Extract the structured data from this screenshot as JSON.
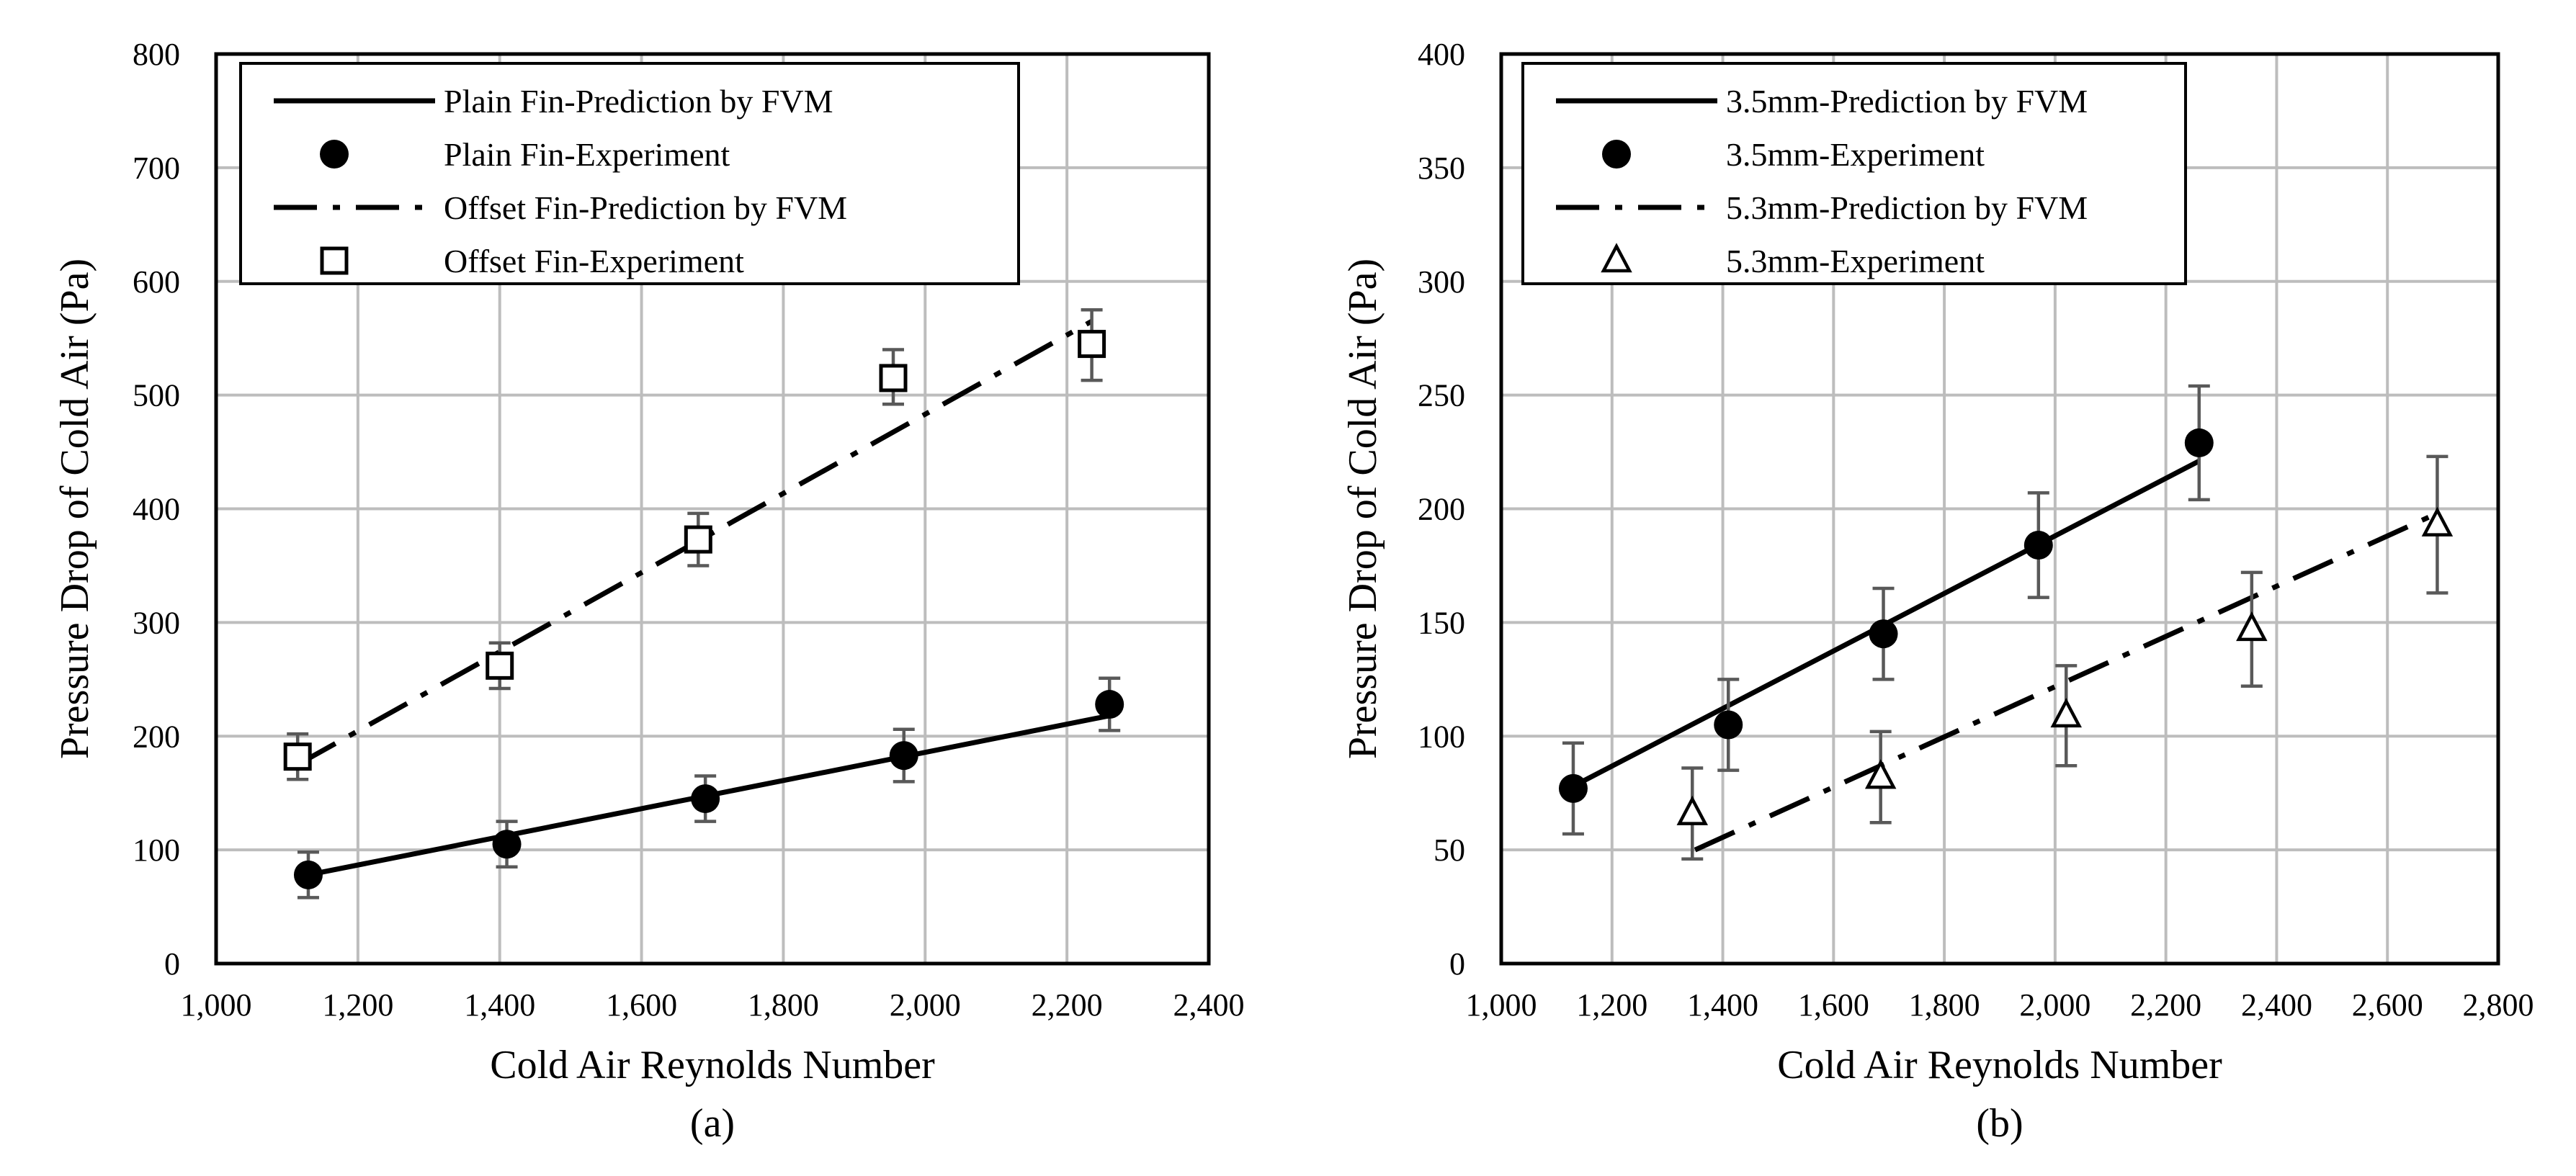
{
  "chart_data": [
    {
      "type": "line",
      "caption": "(a)",
      "xlabel": "Cold Air Reynolds Number",
      "ylabel": "Pressure Drop of Cold Air (Pa)",
      "xlim": [
        1000,
        2400
      ],
      "ylim": [
        0,
        800
      ],
      "x_ticks": [
        1000,
        1200,
        1400,
        1600,
        1800,
        2000,
        2200,
        2400
      ],
      "x_tick_labels": [
        "1,000",
        "1,200",
        "1,400",
        "1,600",
        "1,800",
        "2,000",
        "2,200",
        "2,400"
      ],
      "y_ticks": [
        0,
        100,
        200,
        300,
        400,
        500,
        600,
        700,
        800
      ],
      "y_tick_labels": [
        "0",
        "100",
        "200",
        "300",
        "400",
        "500",
        "600",
        "700",
        "800"
      ],
      "grid": true,
      "legend_position": "top-left",
      "series": [
        {
          "name": "Plain Fin-Prediction by FVM",
          "kind": "line",
          "style": "solid",
          "x": [
            1130,
            2260
          ],
          "y": [
            78,
            218
          ]
        },
        {
          "name": "Plain Fin-Experiment",
          "kind": "points",
          "marker": "filled-circle",
          "x": [
            1130,
            1410,
            1690,
            1970,
            2260
          ],
          "y": [
            78,
            105,
            145,
            183,
            228
          ],
          "err_low": [
            20,
            20,
            20,
            23,
            23
          ],
          "err_high": [
            20,
            20,
            20,
            23,
            23
          ]
        },
        {
          "name": "Offset Fin-Prediction by FVM",
          "kind": "line",
          "style": "dashdot",
          "x": [
            1115,
            2235
          ],
          "y": [
            175,
            565
          ]
        },
        {
          "name": "Offset Fin-Experiment",
          "kind": "points",
          "marker": "open-square",
          "x": [
            1115,
            1400,
            1680,
            1955,
            2235
          ],
          "y": [
            182,
            262,
            373,
            515,
            545
          ],
          "err_low": [
            20,
            20,
            23,
            23,
            32
          ],
          "err_high": [
            20,
            20,
            23,
            25,
            30
          ]
        }
      ]
    },
    {
      "type": "line",
      "caption": "(b)",
      "xlabel": "Cold Air Reynolds Number",
      "ylabel": "Pressure Drop of Cold Air (Pa)",
      "xlim": [
        1000,
        2800
      ],
      "ylim": [
        0,
        400
      ],
      "x_ticks": [
        1000,
        1200,
        1400,
        1600,
        1800,
        2000,
        2200,
        2400,
        2600,
        2800
      ],
      "x_tick_labels": [
        "1,000",
        "1,200",
        "1,400",
        "1,600",
        "1,800",
        "2,000",
        "2,200",
        "2,400",
        "2,600",
        "2,800"
      ],
      "y_ticks": [
        0,
        50,
        100,
        150,
        200,
        250,
        300,
        350,
        400
      ],
      "y_tick_labels": [
        "0",
        "50",
        "100",
        "150",
        "200",
        "250",
        "300",
        "350",
        "400"
      ],
      "grid": true,
      "legend_position": "top-left",
      "series": [
        {
          "name": "3.5mm-Prediction by FVM",
          "kind": "line",
          "style": "solid",
          "x": [
            1130,
            2260
          ],
          "y": [
            78,
            221
          ]
        },
        {
          "name": "3.5mm-Experiment",
          "kind": "points",
          "marker": "filled-circle",
          "x": [
            1130,
            1410,
            1690,
            1970,
            2260
          ],
          "y": [
            77,
            105,
            145,
            184,
            229
          ],
          "err_low": [
            20,
            20,
            20,
            23,
            25
          ],
          "err_high": [
            20,
            20,
            20,
            23,
            25
          ]
        },
        {
          "name": "5.3mm-Prediction by FVM",
          "kind": "line",
          "style": "dashdot",
          "x": [
            1350,
            2690
          ],
          "y": [
            50,
            198
          ]
        },
        {
          "name": "5.3mm-Experiment",
          "kind": "points",
          "marker": "open-triangle",
          "x": [
            1345,
            1685,
            2020,
            2355,
            2690
          ],
          "y": [
            66,
            82,
            109,
            147,
            193
          ],
          "err_low": [
            20,
            20,
            22,
            25,
            30
          ],
          "err_high": [
            20,
            20,
            22,
            25,
            30
          ]
        }
      ]
    }
  ]
}
